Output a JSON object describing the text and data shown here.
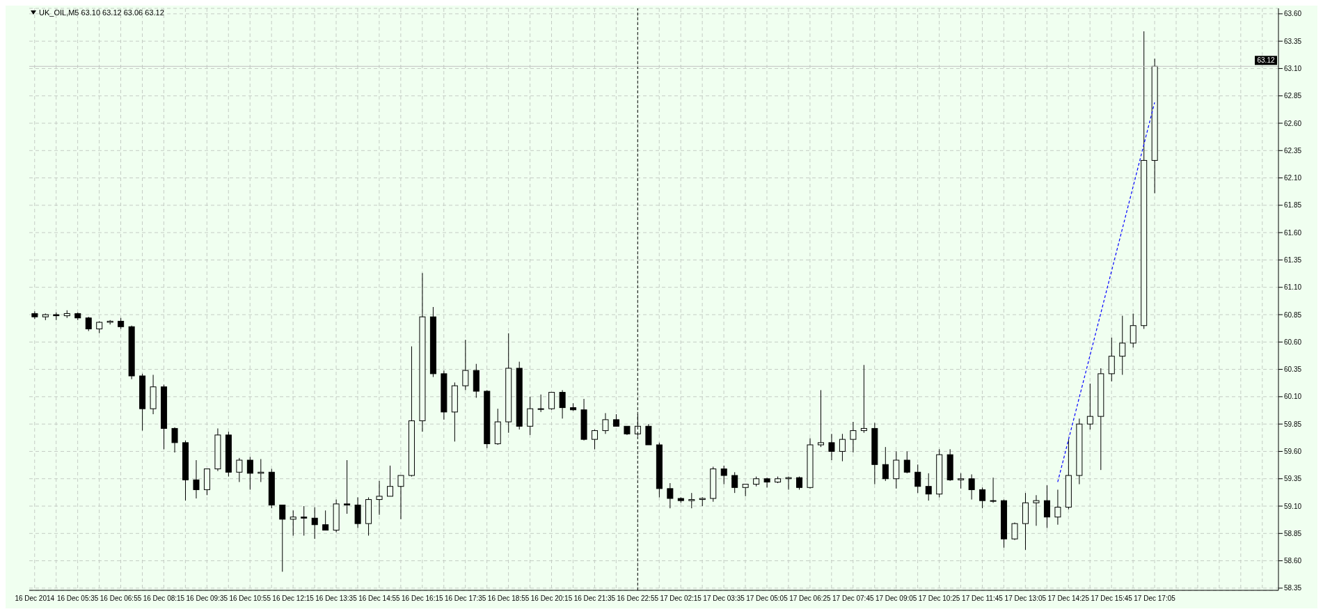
{
  "chart_data": {
    "type": "candlestick",
    "title": "UK_OIL,M5 63.10 63.12 63.06 63.12",
    "color": "#000000",
    "categories": [
      "16 Dec 2014",
      null,
      null,
      null,
      "16 Dec 05:35",
      null,
      null,
      null,
      "16 Dec 06:55",
      null,
      null,
      null,
      "16 Dec 08:15",
      null,
      null,
      null,
      "16 Dec 09:35",
      null,
      null,
      null,
      "16 Dec 10:55",
      null,
      null,
      null,
      "16 Dec 12:15",
      null,
      null,
      null,
      "16 Dec 13:35",
      null,
      null,
      null,
      "16 Dec 14:55",
      null,
      null,
      null,
      "16 Dec 16:15",
      null,
      null,
      null,
      "16 Dec 17:35",
      null,
      null,
      null,
      "16 Dec 18:55",
      null,
      null,
      null,
      "16 Dec 20:15",
      null,
      null,
      null,
      "16 Dec 21:35",
      null,
      null,
      null,
      "16 Dec 22:55",
      null,
      null,
      null,
      "17 Dec 02:15",
      null,
      null,
      null,
      "17 Dec 03:35",
      null,
      null,
      null,
      "17 Dec 05:05",
      null,
      null,
      null,
      "17 Dec 06:25",
      null,
      null,
      null,
      "17 Dec 07:45",
      null,
      null,
      null,
      "17 Dec 09:05",
      null,
      null,
      null,
      "17 Dec 10:25",
      null,
      null,
      null,
      "17 Dec 11:45",
      null,
      null,
      null,
      "17 Dec 13:05",
      null,
      null,
      null,
      "17 Dec 14:25",
      null,
      null,
      null,
      "17 Dec 15:45",
      null,
      null,
      null,
      "17 Dec 17:05",
      null,
      null,
      null,
      null,
      null,
      null,
      null,
      null,
      null,
      null,
      null
    ],
    "ohlc": [
      [
        60.86,
        60.88,
        60.81,
        60.83
      ],
      [
        60.83,
        60.86,
        60.8,
        60.85
      ],
      [
        60.85,
        60.87,
        60.8,
        60.84
      ],
      [
        60.84,
        60.89,
        60.82,
        60.86
      ],
      [
        60.86,
        60.87,
        60.8,
        60.82
      ],
      [
        60.82,
        60.83,
        60.7,
        60.72
      ],
      [
        60.72,
        60.79,
        60.68,
        60.78
      ],
      [
        60.78,
        60.8,
        60.76,
        60.79
      ],
      [
        60.79,
        60.82,
        60.72,
        60.74
      ],
      [
        60.74,
        60.75,
        60.26,
        60.29
      ],
      [
        60.29,
        60.31,
        59.79,
        59.99
      ],
      [
        59.99,
        60.3,
        59.94,
        60.19
      ],
      [
        60.19,
        60.21,
        59.62,
        59.81
      ],
      [
        59.81,
        59.82,
        59.59,
        59.68
      ],
      [
        59.68,
        59.7,
        59.15,
        59.34
      ],
      [
        59.34,
        59.52,
        59.17,
        59.25
      ],
      [
        59.25,
        59.44,
        59.2,
        59.44
      ],
      [
        59.44,
        59.81,
        59.42,
        59.75
      ],
      [
        59.75,
        59.78,
        59.37,
        59.41
      ],
      [
        59.41,
        59.54,
        59.32,
        59.52
      ],
      [
        59.52,
        59.55,
        59.25,
        59.4
      ],
      [
        59.4,
        59.53,
        59.32,
        59.41
      ],
      [
        59.41,
        59.44,
        59.08,
        59.11
      ],
      [
        59.11,
        59.11,
        58.5,
        58.98
      ],
      [
        58.98,
        59.06,
        58.83,
        59.0
      ],
      [
        59.0,
        59.1,
        58.83,
        58.99
      ],
      [
        58.99,
        59.09,
        58.8,
        58.93
      ],
      [
        58.93,
        59.06,
        58.88,
        58.88
      ],
      [
        58.88,
        59.16,
        58.86,
        59.12
      ],
      [
        59.12,
        59.52,
        59.03,
        59.11
      ],
      [
        59.11,
        59.18,
        58.9,
        58.94
      ],
      [
        58.94,
        59.18,
        58.83,
        59.16
      ],
      [
        59.16,
        59.33,
        59.02,
        59.19
      ],
      [
        59.19,
        59.47,
        59.19,
        59.28
      ],
      [
        59.28,
        59.38,
        58.98,
        59.38
      ],
      [
        59.38,
        60.56,
        59.37,
        59.88
      ],
      [
        59.88,
        61.23,
        59.78,
        60.83
      ],
      [
        60.83,
        60.92,
        60.28,
        60.31
      ],
      [
        60.31,
        60.34,
        59.89,
        59.96
      ],
      [
        59.96,
        60.23,
        59.69,
        60.2
      ],
      [
        60.2,
        60.62,
        60.16,
        60.34
      ],
      [
        60.34,
        60.4,
        60.09,
        60.15
      ],
      [
        60.15,
        60.16,
        59.63,
        59.67
      ],
      [
        59.67,
        59.99,
        59.66,
        59.87
      ],
      [
        59.87,
        60.68,
        59.77,
        60.36
      ],
      [
        60.36,
        60.42,
        59.8,
        59.83
      ],
      [
        59.83,
        60.1,
        59.75,
        59.99
      ],
      [
        59.99,
        60.12,
        59.96,
        59.99
      ],
      [
        59.99,
        60.14,
        59.98,
        60.14
      ],
      [
        60.14,
        60.16,
        59.9,
        60.0
      ],
      [
        60.0,
        60.04,
        59.97,
        59.98
      ],
      [
        59.98,
        60.08,
        59.7,
        59.71
      ],
      [
        59.71,
        59.8,
        59.62,
        59.79
      ],
      [
        59.79,
        59.95,
        59.76,
        59.89
      ],
      [
        59.89,
        59.94,
        59.83,
        59.83
      ],
      [
        59.83,
        59.83,
        59.75,
        59.76
      ],
      [
        59.76,
        59.94,
        59.74,
        59.83
      ],
      [
        59.83,
        59.85,
        59.66,
        59.66
      ],
      [
        59.66,
        59.68,
        59.18,
        59.26
      ],
      [
        59.26,
        59.31,
        59.08,
        59.17
      ],
      [
        59.17,
        59.18,
        59.13,
        59.15
      ],
      [
        59.15,
        59.22,
        59.08,
        59.16
      ],
      [
        59.16,
        59.18,
        59.1,
        59.17
      ],
      [
        59.17,
        59.46,
        59.14,
        59.44
      ],
      [
        59.44,
        59.47,
        59.3,
        59.38
      ],
      [
        59.38,
        59.41,
        59.22,
        59.27
      ],
      [
        59.27,
        59.3,
        59.19,
        59.3
      ],
      [
        59.3,
        59.37,
        59.28,
        59.35
      ],
      [
        59.35,
        59.36,
        59.27,
        59.32
      ],
      [
        59.32,
        59.37,
        59.31,
        59.35
      ],
      [
        59.35,
        59.37,
        59.25,
        59.36
      ],
      [
        59.36,
        59.37,
        59.25,
        59.27
      ],
      [
        59.27,
        59.72,
        59.26,
        59.66
      ],
      [
        59.66,
        60.16,
        59.64,
        59.68
      ],
      [
        59.68,
        59.76,
        59.52,
        59.6
      ],
      [
        59.6,
        59.76,
        59.51,
        59.71
      ],
      [
        59.71,
        59.87,
        59.59,
        59.79
      ],
      [
        59.79,
        60.39,
        59.77,
        59.81
      ],
      [
        59.81,
        59.86,
        59.3,
        59.48
      ],
      [
        59.48,
        59.64,
        59.33,
        59.35
      ],
      [
        59.35,
        59.6,
        59.26,
        59.52
      ],
      [
        59.52,
        59.6,
        59.4,
        59.41
      ],
      [
        59.41,
        59.48,
        59.22,
        59.28
      ],
      [
        59.28,
        59.4,
        59.15,
        59.21
      ],
      [
        59.21,
        59.62,
        59.18,
        59.57
      ],
      [
        59.57,
        59.62,
        59.33,
        59.34
      ],
      [
        59.34,
        59.4,
        59.26,
        59.35
      ],
      [
        59.35,
        59.39,
        59.16,
        59.25
      ],
      [
        59.25,
        59.27,
        59.08,
        59.15
      ],
      [
        59.15,
        59.36,
        59.13,
        59.15
      ],
      [
        59.15,
        59.16,
        58.72,
        58.8
      ],
      [
        58.8,
        58.95,
        58.79,
        58.94
      ],
      [
        58.94,
        59.22,
        58.7,
        59.13
      ],
      [
        59.13,
        59.2,
        58.92,
        59.15
      ],
      [
        59.15,
        59.29,
        58.9,
        59.0
      ],
      [
        59.0,
        59.25,
        58.93,
        59.09
      ],
      [
        59.09,
        59.71,
        59.07,
        59.38
      ],
      [
        59.38,
        59.9,
        59.3,
        59.85
      ],
      [
        59.85,
        60.22,
        59.8,
        59.92
      ],
      [
        59.92,
        60.36,
        59.43,
        60.31
      ],
      [
        60.31,
        60.64,
        60.24,
        60.47
      ],
      [
        60.47,
        60.84,
        60.3,
        60.59
      ],
      [
        60.59,
        60.86,
        60.55,
        60.75
      ],
      [
        60.75,
        63.44,
        60.72,
        62.26
      ],
      [
        62.26,
        63.19,
        61.96,
        63.12
      ],
      null,
      null,
      null,
      null,
      null,
      null,
      null,
      null,
      null,
      null,
      null
    ],
    "series": [
      {
        "type": "line",
        "color": "#0000ff",
        "line_style": "dashed",
        "values": [
          null,
          null,
          null,
          null,
          null,
          null,
          null,
          null,
          null,
          null,
          null,
          null,
          null,
          null,
          null,
          null,
          null,
          null,
          null,
          null,
          null,
          null,
          null,
          null,
          null,
          null,
          null,
          null,
          null,
          null,
          null,
          null,
          null,
          null,
          null,
          null,
          null,
          null,
          null,
          null,
          null,
          null,
          null,
          null,
          null,
          null,
          null,
          null,
          null,
          null,
          null,
          null,
          null,
          null,
          null,
          null,
          null,
          null,
          null,
          null,
          null,
          null,
          null,
          null,
          null,
          null,
          null,
          null,
          null,
          null,
          null,
          null,
          null,
          null,
          null,
          null,
          null,
          null,
          null,
          null,
          null,
          null,
          null,
          null,
          null,
          null,
          null,
          null,
          null,
          null,
          null,
          null,
          null,
          null,
          null,
          59.32,
          null,
          null,
          null,
          null,
          null,
          null,
          null,
          null,
          62.79,
          null,
          null,
          null,
          null,
          null,
          null,
          null,
          null,
          null,
          null,
          null
        ]
      }
    ],
    "ylim": [
      58.33,
      63.65
    ],
    "yticks": [
      58.35,
      {
        "value": 58.6,
        "label": "58.60"
      },
      58.85,
      {
        "value": 59.1,
        "label": "59.10"
      },
      59.35,
      {
        "value": 59.6,
        "label": "59.60"
      },
      59.85,
      {
        "value": 60.1,
        "label": "60.10"
      },
      60.35,
      {
        "value": 60.6,
        "label": "60.60"
      },
      60.85,
      {
        "value": 61.1,
        "label": "61.10"
      },
      61.35,
      {
        "value": 61.6,
        "label": "61.60"
      },
      61.85,
      {
        "value": 62.1,
        "label": "62.10"
      },
      62.35,
      {
        "value": 62.6,
        "label": "62.60"
      },
      62.85,
      {
        "value": 63.1,
        "label": "63.10"
      },
      63.35,
      {
        "value": 63.6,
        "label": "63.60"
      }
    ],
    "ref_lines": [
      {
        "axis": "x",
        "value": "16 Dec 22:55",
        "color": "#000000",
        "line_style": "dashed"
      },
      {
        "axis": "y",
        "value": 63.12,
        "label": "63.12",
        "color": "#c0c0c0",
        "line_style": "solid"
      }
    ],
    "grid": true
  }
}
